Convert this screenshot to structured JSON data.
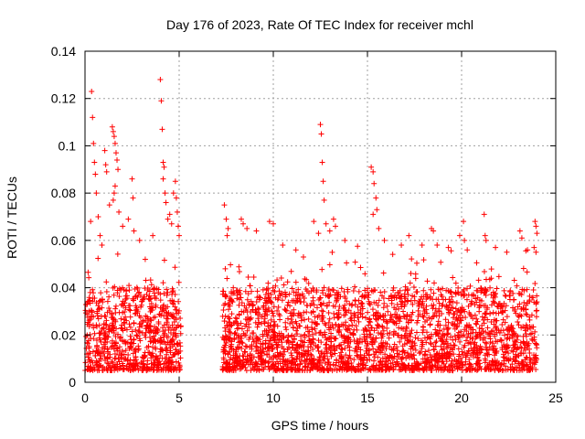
{
  "chart_data": {
    "type": "scatter",
    "title": "Day 176 of 2023, Rate Of TEC Index for receiver mchl",
    "xlabel": "GPS time / hours",
    "ylabel": "ROTI / TECUs",
    "xlim": [
      0,
      25
    ],
    "ylim": [
      0,
      0.14
    ],
    "xticks": [
      "0",
      "5",
      "10",
      "15",
      "20",
      "25"
    ],
    "yticks": [
      "0",
      "0.02",
      "0.04",
      "0.06",
      "0.08",
      "0.1",
      "0.12",
      "0.14"
    ],
    "grid": true,
    "marker": "+",
    "color": "#ff0000",
    "series": [
      {
        "name": "ROTI",
        "coverage_hours": [
          [
            0,
            5.1
          ],
          [
            7.3,
            24
          ]
        ],
        "baseline_range": [
          0.005,
          0.04
        ],
        "points": [
          [
            0.35,
            0.123
          ],
          [
            0.4,
            0.112
          ],
          [
            0.45,
            0.101
          ],
          [
            0.5,
            0.093
          ],
          [
            0.55,
            0.088
          ],
          [
            0.6,
            0.08
          ],
          [
            0.7,
            0.07
          ],
          [
            0.3,
            0.068
          ],
          [
            0.8,
            0.062
          ],
          [
            0.9,
            0.058
          ],
          [
            1.05,
            0.098
          ],
          [
            1.1,
            0.092
          ],
          [
            1.15,
            0.089
          ],
          [
            1.3,
            0.075
          ],
          [
            1.45,
            0.108
          ],
          [
            1.5,
            0.106
          ],
          [
            1.55,
            0.104
          ],
          [
            1.6,
            0.101
          ],
          [
            1.65,
            0.097
          ],
          [
            1.7,
            0.094
          ],
          [
            1.75,
            0.09
          ],
          [
            1.6,
            0.083
          ],
          [
            1.55,
            0.08
          ],
          [
            1.5,
            0.077
          ],
          [
            1.8,
            0.072
          ],
          [
            2.0,
            0.066
          ],
          [
            2.3,
            0.069
          ],
          [
            2.5,
            0.086
          ],
          [
            2.55,
            0.078
          ],
          [
            2.6,
            0.064
          ],
          [
            2.9,
            0.06
          ],
          [
            3.2,
            0.052
          ],
          [
            3.6,
            0.062
          ],
          [
            4.0,
            0.128
          ],
          [
            4.05,
            0.119
          ],
          [
            4.1,
            0.107
          ],
          [
            4.15,
            0.093
          ],
          [
            4.2,
            0.091
          ],
          [
            4.15,
            0.086
          ],
          [
            4.25,
            0.08
          ],
          [
            4.3,
            0.076
          ],
          [
            4.5,
            0.071
          ],
          [
            4.4,
            0.069
          ],
          [
            4.6,
            0.067
          ],
          [
            4.7,
            0.08
          ],
          [
            4.8,
            0.085
          ],
          [
            4.85,
            0.078
          ],
          [
            4.9,
            0.072
          ],
          [
            4.95,
            0.066
          ],
          [
            5.0,
            0.062
          ],
          [
            7.4,
            0.075
          ],
          [
            7.5,
            0.069
          ],
          [
            7.6,
            0.065
          ],
          [
            7.55,
            0.062
          ],
          [
            7.45,
            0.048
          ],
          [
            8.3,
            0.069
          ],
          [
            8.4,
            0.067
          ],
          [
            8.6,
            0.065
          ],
          [
            9.1,
            0.064
          ],
          [
            9.8,
            0.068
          ],
          [
            10.0,
            0.067
          ],
          [
            10.5,
            0.058
          ],
          [
            11.2,
            0.056
          ],
          [
            11.6,
            0.053
          ],
          [
            12.15,
            0.068
          ],
          [
            12.4,
            0.063
          ],
          [
            12.5,
            0.109
          ],
          [
            12.55,
            0.105
          ],
          [
            12.6,
            0.093
          ],
          [
            12.65,
            0.085
          ],
          [
            12.7,
            0.077
          ],
          [
            12.8,
            0.067
          ],
          [
            13.0,
            0.064
          ],
          [
            13.2,
            0.069
          ],
          [
            13.3,
            0.066
          ],
          [
            13.8,
            0.06
          ],
          [
            15.2,
            0.091
          ],
          [
            15.3,
            0.089
          ],
          [
            15.35,
            0.084
          ],
          [
            15.45,
            0.078
          ],
          [
            15.5,
            0.073
          ],
          [
            15.3,
            0.071
          ],
          [
            15.6,
            0.065
          ],
          [
            15.9,
            0.06
          ],
          [
            16.8,
            0.058
          ],
          [
            17.2,
            0.062
          ],
          [
            17.9,
            0.058
          ],
          [
            18.4,
            0.065
          ],
          [
            18.5,
            0.064
          ],
          [
            18.7,
            0.058
          ],
          [
            19.3,
            0.057
          ],
          [
            19.9,
            0.062
          ],
          [
            20.1,
            0.068
          ],
          [
            20.15,
            0.06
          ],
          [
            20.3,
            0.056
          ],
          [
            21.2,
            0.071
          ],
          [
            21.25,
            0.062
          ],
          [
            21.3,
            0.06
          ],
          [
            21.8,
            0.057
          ],
          [
            22.4,
            0.055
          ],
          [
            23.1,
            0.064
          ],
          [
            23.2,
            0.061
          ],
          [
            23.5,
            0.056
          ],
          [
            23.9,
            0.068
          ],
          [
            23.95,
            0.066
          ],
          [
            24.0,
            0.063
          ],
          [
            23.85,
            0.057
          ],
          [
            23.95,
            0.055
          ]
        ]
      }
    ]
  }
}
